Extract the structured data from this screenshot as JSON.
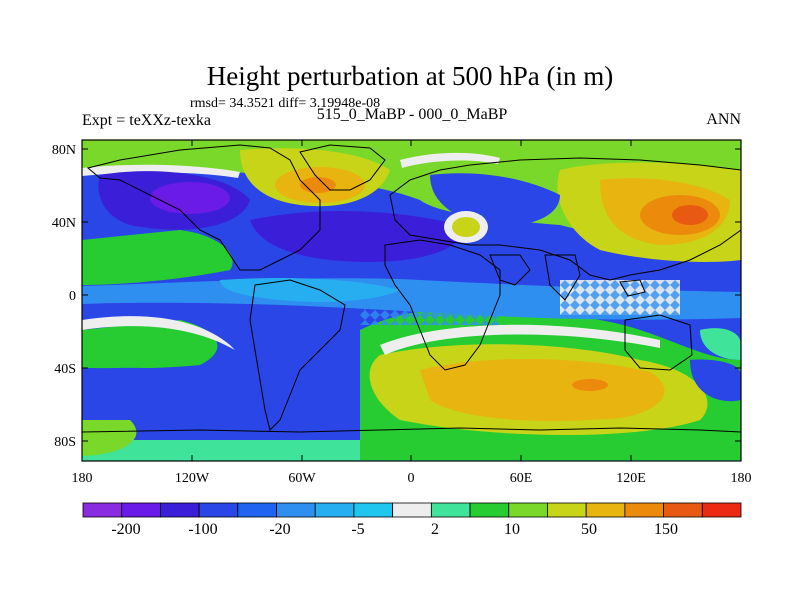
{
  "map": {
    "title": "Height perturbation at 500 hPa (in m)",
    "stats": "rmsd= 34.3521  diff= 3.19948e-08",
    "left_label": "Expt = teXXz-texka",
    "center_label": "515_0_MaBP - 000_0_MaBP",
    "right_label": "ANN",
    "lat_ticks": [
      "80N",
      "40N",
      "0",
      "40S",
      "80S"
    ],
    "lon_ticks": [
      "180",
      "120W",
      "60W",
      "0",
      "60E",
      "120E",
      "180"
    ]
  },
  "colorbar": {
    "colors": [
      "#8a2be2",
      "#6a1be8",
      "#3b1fd8",
      "#2a46e6",
      "#1e64f0",
      "#2f8ff0",
      "#27aef0",
      "#21c6ee",
      "#eeeeee",
      "#3fe49a",
      "#27cc33",
      "#7ad82a",
      "#c8d418",
      "#e8b410",
      "#ec8a0c",
      "#e85a12",
      "#ec2a14"
    ],
    "labels": [
      "-200",
      "-100",
      "-20",
      "-5",
      "2",
      "10",
      "50",
      "150"
    ]
  }
}
